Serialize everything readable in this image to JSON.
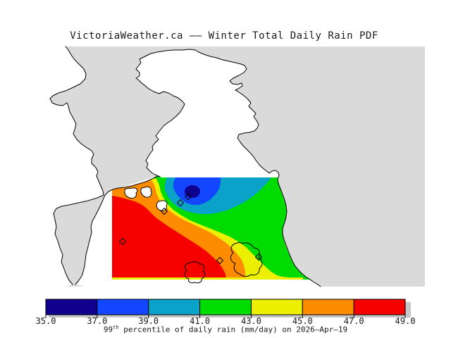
{
  "title": "VictoriaWeather.ca —— Winter Total Daily Rain PDF",
  "map": {
    "water_color": "#dadada",
    "land_color": "#ffffff",
    "coast_color": "#000000",
    "station_marker_shape": "open-diamond",
    "station_marker_count": 6
  },
  "colorbar": {
    "colors": [
      "#100090",
      "#1246ff",
      "#0aa2c8",
      "#00dc00",
      "#ecf000",
      "#ff8c00",
      "#f60000"
    ],
    "tick_labels": [
      "35.0",
      "37.0",
      "39.0",
      "41.0",
      "43.0",
      "45.0",
      "47.0",
      "49.0"
    ],
    "shadow_color": "#c8c8c8",
    "caption_number": "99",
    "caption_sup": "th",
    "caption_rest": " percentile of daily rain (mm/day) on 2026–Apr–19"
  },
  "chart_data": {
    "type": "heatmap",
    "title": "VictoriaWeather.ca —— Winter Total Daily Rain PDF",
    "statistic": "99th percentile of daily rain",
    "units": "mm/day",
    "valid_date": "2026-Apr-19",
    "colorbar_levels": [
      35.0,
      37.0,
      39.0,
      41.0,
      43.0,
      45.0,
      47.0,
      49.0
    ],
    "legend_position": "bottom",
    "palette": [
      "#100090",
      "#1246ff",
      "#0aa2c8",
      "#00dc00",
      "#ecf000",
      "#ff8c00",
      "#f60000"
    ],
    "bands": [
      {
        "range": [
          35.0,
          37.0
        ],
        "color": "#100090",
        "region": "small oval minimum core in the northeast of the data area"
      },
      {
        "range": [
          37.0,
          39.0
        ],
        "color": "#1246ff",
        "region": "oval around the minimum, touching the north edge of the data area"
      },
      {
        "range": [
          39.0,
          41.0
        ],
        "color": "#0aa2c8",
        "region": "wide band across the northeast"
      },
      {
        "range": [
          41.0,
          43.0
        ],
        "color": "#00dc00",
        "region": "broad band over the eastern and central area down the coast"
      },
      {
        "range": [
          43.0,
          45.0
        ],
        "color": "#ecf000",
        "region": "diagonal band from northwest to southeast through the centre"
      },
      {
        "range": [
          45.0,
          47.0
        ],
        "color": "#ff8c00",
        "region": "diagonal band southwest of the yellow band"
      },
      {
        "range": [
          47.0,
          49.0
        ],
        "color": "#f60000",
        "region": "large maximum area covering the southwest of the data area"
      }
    ]
  }
}
